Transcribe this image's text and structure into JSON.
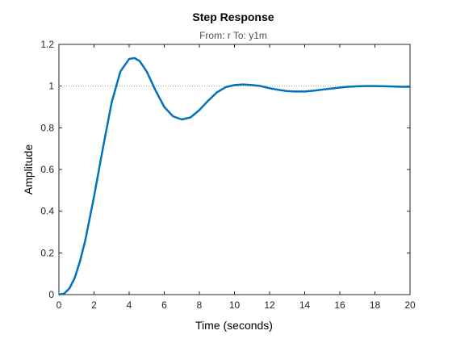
{
  "chart_data": {
    "type": "line",
    "title": "Step Response",
    "subtitle": "From: r  To: y1m",
    "xlabel": "Time (seconds)",
    "ylabel": "Amplitude",
    "xlim": [
      0,
      20
    ],
    "ylim": [
      0,
      1.2
    ],
    "xticks": [
      "0",
      "2",
      "4",
      "6",
      "8",
      "10",
      "12",
      "14",
      "16",
      "18",
      "20"
    ],
    "yticks": [
      "0",
      "0.2",
      "0.4",
      "0.6",
      "0.8",
      "1",
      "1.2"
    ],
    "reference_line": 1,
    "grid": false,
    "series_color": "#0072BD",
    "reference_color": "#999999",
    "series": [
      {
        "x": [
          0,
          0.3,
          0.6,
          0.9,
          1.2,
          1.5,
          2,
          2.5,
          3,
          3.5,
          4,
          4.3,
          4.6,
          5,
          5.5,
          6,
          6.5,
          7,
          7.5,
          8,
          8.5,
          9,
          9.5,
          10,
          10.5,
          11,
          11.5,
          12,
          12.5,
          13,
          13.5,
          14,
          14.5,
          15,
          15.5,
          16,
          16.5,
          17,
          17.5,
          18,
          18.5,
          19,
          19.5,
          20
        ],
        "y": [
          0,
          0.005,
          0.03,
          0.08,
          0.16,
          0.26,
          0.47,
          0.7,
          0.92,
          1.07,
          1.13,
          1.135,
          1.12,
          1.07,
          0.98,
          0.9,
          0.855,
          0.84,
          0.85,
          0.885,
          0.93,
          0.97,
          0.995,
          1.005,
          1.008,
          1.005,
          1.0,
          0.99,
          0.982,
          0.976,
          0.974,
          0.974,
          0.978,
          0.983,
          0.988,
          0.993,
          0.997,
          0.999,
          1.0,
          1.0,
          0.999,
          0.998,
          0.997,
          0.997
        ]
      }
    ]
  }
}
